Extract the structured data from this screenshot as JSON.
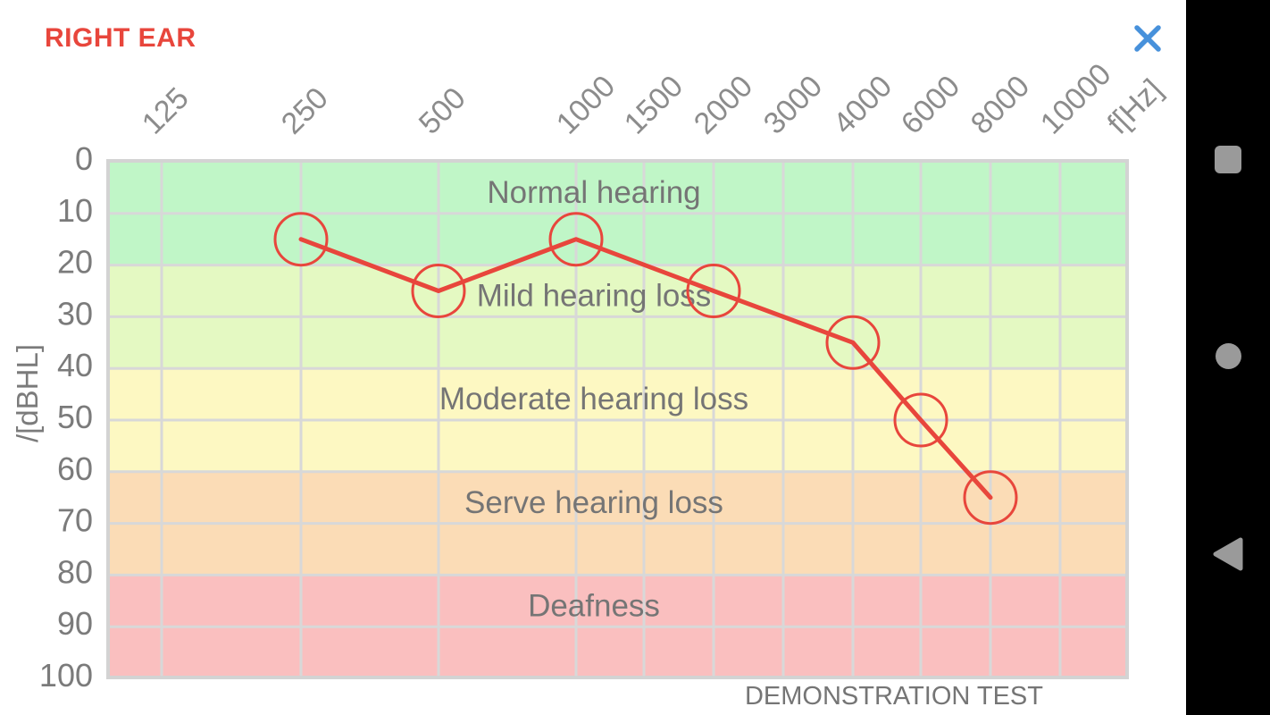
{
  "header": {
    "title": "RIGHT EAR"
  },
  "close": {
    "icon_name": "close-x-icon",
    "color": "#4791db"
  },
  "chart_data": {
    "type": "line",
    "title": "RIGHT EAR audiogram",
    "x_axis": {
      "unit_label": "f[Hz]",
      "tick_labels": [
        "125",
        "250",
        "500",
        "1000",
        "1500",
        "2000",
        "3000",
        "4000",
        "6000",
        "8000",
        "10000"
      ]
    },
    "y_axis": {
      "label": "/[dBHL]",
      "ticks": [
        0,
        10,
        20,
        30,
        40,
        50,
        60,
        70,
        80,
        90,
        100
      ],
      "range": [
        0,
        100
      ]
    },
    "zones": [
      {
        "label": "Normal hearing",
        "from": 0,
        "to": 20,
        "color": "#c0f6c7"
      },
      {
        "label": "Mild hearing loss",
        "from": 20,
        "to": 40,
        "color": "#e4f9c2"
      },
      {
        "label": "Moderate hearing loss",
        "from": 40,
        "to": 60,
        "color": "#fdf8c2"
      },
      {
        "label": "Serve hearing loss",
        "from": 60,
        "to": 80,
        "color": "#fbdcb6"
      },
      {
        "label": "Deafness",
        "from": 80,
        "to": 100,
        "color": "#fabfbf"
      }
    ],
    "series": [
      {
        "name": "right-ear-threshold",
        "color": "#e8463c",
        "marker": "circle",
        "points": [
          {
            "freq": "250",
            "db": 15
          },
          {
            "freq": "500",
            "db": 25
          },
          {
            "freq": "1000",
            "db": 15
          },
          {
            "freq": "2000",
            "db": 25
          },
          {
            "freq": "4000",
            "db": 35
          },
          {
            "freq": "6000",
            "db": 50
          },
          {
            "freq": "8000",
            "db": 65
          }
        ]
      }
    ],
    "grid": true,
    "footer_note": "DEMONSTRATION TEST",
    "styles": {
      "grid_color": "#d8d8d8",
      "border_color": "#d3d3d3",
      "tick_label_color": "#8c8c8c",
      "y_label_color": "#7b7b7b",
      "zone_label_color": "#757575"
    }
  },
  "nav_bar": {
    "background": "#000000",
    "icon_color": "#9a9a9a",
    "items": [
      {
        "name": "recents-button",
        "icon": "square-icon"
      },
      {
        "name": "home-button",
        "icon": "circle-icon"
      },
      {
        "name": "back-button",
        "icon": "triangle-left-icon"
      }
    ]
  }
}
